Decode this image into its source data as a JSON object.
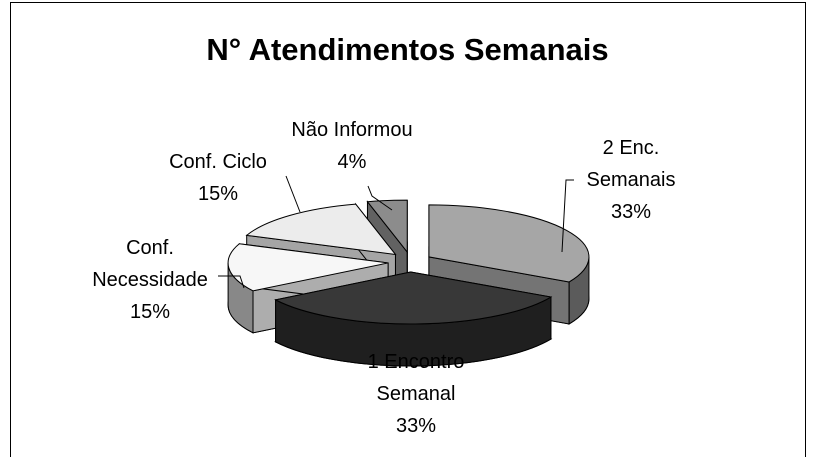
{
  "chart_data": {
    "type": "pie",
    "title": "N° Atendimentos Semanais",
    "categories": [
      "2 Enc. Semanais",
      "1 Encontro Semanal",
      "Conf. Necessidade",
      "Conf. Ciclo",
      "Não Informou"
    ],
    "values": [
      33,
      33,
      15,
      15,
      4
    ],
    "value_labels": [
      "33%",
      "33%",
      "15%",
      "15%",
      "4%"
    ],
    "colors": [
      "#a6a6a6",
      "#383838",
      "#f7f7f7",
      "#ececec",
      "#8c8c8c"
    ]
  }
}
